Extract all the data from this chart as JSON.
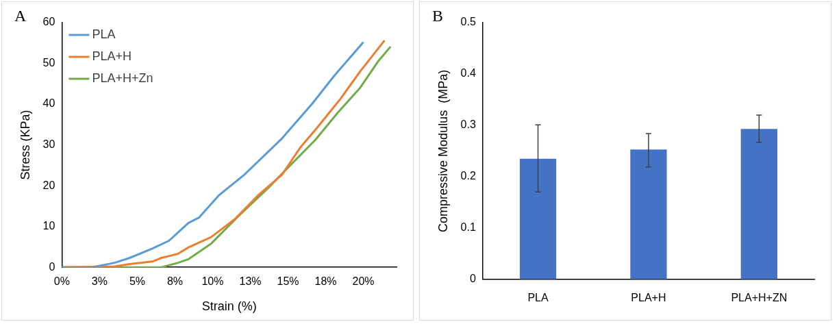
{
  "chart_data": [
    {
      "type": "line",
      "annotations": [
        "A"
      ],
      "xlabel": "Strain (%)",
      "ylabel": "Stress (KPa)",
      "xlim": [
        0,
        22.2
      ],
      "xticks": [
        {
          "value": 0,
          "label": "0%"
        },
        {
          "value": 2.5,
          "label": "3%"
        },
        {
          "value": 5,
          "label": "5%"
        },
        {
          "value": 7.5,
          "label": "8%"
        },
        {
          "value": 10,
          "label": "10%"
        },
        {
          "value": 12.5,
          "label": "13%"
        },
        {
          "value": 15,
          "label": "15%"
        },
        {
          "value": 17.5,
          "label": "18%"
        },
        {
          "value": 20,
          "label": "20%"
        }
      ],
      "ylim": [
        0,
        60
      ],
      "yticks": [
        0,
        10,
        20,
        30,
        40,
        50,
        60
      ],
      "grid": false,
      "legend": "top left",
      "marker": "none",
      "line_style": "solid",
      "series": [
        {
          "name": "PLA",
          "color": "#5b9bd5",
          "x": [
            0,
            2.0,
            3.5,
            4.5,
            6.0,
            7.1,
            8.4,
            9.1,
            10.4,
            12.1,
            14.6,
            16.6,
            18.1,
            20.0
          ],
          "values": [
            0,
            0,
            1.1,
            2.3,
            4.6,
            6.5,
            10.9,
            12.2,
            17.6,
            22.7,
            31.6,
            40.1,
            47.1,
            55.2
          ]
        },
        {
          "name": "PLA+H",
          "color": "#ed7d31",
          "x": [
            0,
            3.5,
            4.5,
            6.0,
            6.6,
            7.7,
            8.4,
            9.9,
            11.5,
            13.0,
            14.6,
            15.8,
            16.9,
            18.5,
            19.8,
            21.4
          ],
          "values": [
            0,
            0.2,
            0.8,
            1.4,
            2.3,
            3.3,
            4.9,
            7.4,
            11.9,
            17.6,
            22.7,
            29.3,
            34.1,
            41.4,
            48.1,
            55.6
          ]
        },
        {
          "name": "PLA+H+Zn",
          "color": "#70ad47",
          "x": [
            0,
            6.6,
            7.7,
            8.4,
            9.9,
            11.7,
            13.7,
            15.2,
            16.8,
            18.3,
            19.8,
            21.0,
            21.8
          ],
          "values": [
            0,
            0,
            1.1,
            2.0,
            5.8,
            12.5,
            19.5,
            25.2,
            31.2,
            37.9,
            44.1,
            50.6,
            54.1
          ]
        }
      ]
    },
    {
      "type": "bar",
      "annotations": [
        "B"
      ],
      "ylabel": "Compressive Modulus  (MPa)",
      "categories": [
        "PLA",
        "PLA+H",
        "PLA+H+ZN"
      ],
      "ylim": [
        0,
        0.5
      ],
      "yticks": [
        0,
        0.1,
        0.2,
        0.3,
        0.4,
        0.5
      ],
      "grid": false,
      "legend": false,
      "series": [
        {
          "color": "#4472c4",
          "values": [
            0.235,
            0.253,
            0.293
          ],
          "errors": [
            [
              0.17,
              0.301
            ],
            [
              0.219,
              0.284
            ],
            [
              0.267,
              0.32
            ]
          ]
        }
      ]
    }
  ]
}
